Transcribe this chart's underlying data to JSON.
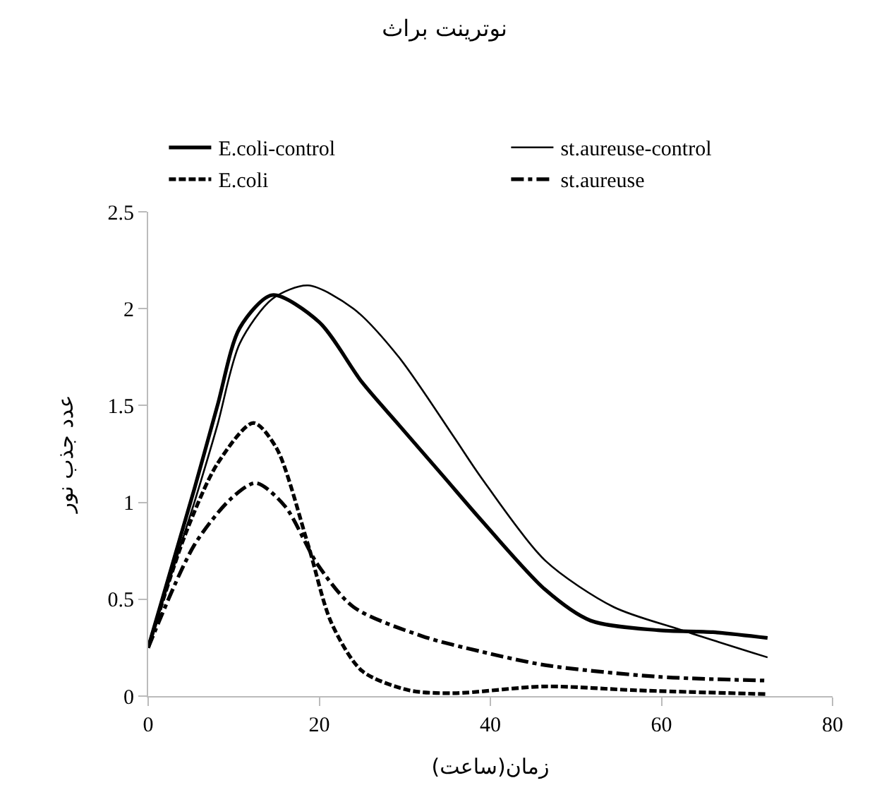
{
  "chart_data": {
    "type": "line",
    "title": "نوترینت براث",
    "xlabel": "زمان(ساعت)",
    "ylabel": "عدد جذب نور",
    "xlim": [
      0,
      80
    ],
    "xticks": [
      0,
      20,
      40,
      60,
      80
    ],
    "ylim": [
      0,
      2.5
    ],
    "yticks": [
      0,
      0.5,
      1,
      1.5,
      2,
      2.5
    ],
    "grid": false,
    "legend": "top",
    "marker": "none",
    "series": [
      {
        "name": "E.coli-control",
        "color": "#000000",
        "line_style": "solid",
        "x": [
          0,
          5.4,
          8.1,
          10.7,
          14.5,
          20,
          25,
          29.3,
          34.6,
          38.9,
          46.4,
          51.7,
          59.6,
          66,
          72.4
        ],
        "values": [
          0.25,
          1.07,
          1.5,
          1.9,
          2.07,
          1.93,
          1.62,
          1.4,
          1.13,
          0.91,
          0.55,
          0.39,
          0.34,
          0.33,
          0.3
        ]
      },
      {
        "name": "st.aureuse-control",
        "color": "#000000",
        "line_style": "solid",
        "x": [
          0,
          5.4,
          8.1,
          10.7,
          14.5,
          18.7,
          24,
          29.3,
          35.7,
          38.9,
          46.4,
          54.4,
          62.4,
          72.4
        ],
        "values": [
          0.25,
          1.0,
          1.4,
          1.82,
          2.05,
          2.12,
          2.0,
          1.75,
          1.34,
          1.13,
          0.7,
          0.46,
          0.34,
          0.2
        ]
      },
      {
        "name": "E.coli",
        "color": "#000000",
        "line_style": "dashed",
        "x": [
          0,
          4.3,
          8.1,
          12.3,
          15,
          18.7,
          21.4,
          25,
          30.5,
          35.7,
          46.4,
          57,
          72.4
        ],
        "values": [
          0.25,
          0.83,
          1.2,
          1.41,
          1.28,
          0.78,
          0.38,
          0.13,
          0.03,
          0.015,
          0.05,
          0.03,
          0.01
        ]
      },
      {
        "name": "st.aureuse",
        "color": "#000000",
        "line_style": "dashdot",
        "x": [
          0,
          5.4,
          9.7,
          12.6,
          16,
          19.8,
          24,
          32,
          38.9,
          46.4,
          59.6,
          72.4
        ],
        "values": [
          0.25,
          0.78,
          1.02,
          1.1,
          0.98,
          0.68,
          0.46,
          0.31,
          0.23,
          0.16,
          0.1,
          0.08
        ]
      }
    ]
  }
}
